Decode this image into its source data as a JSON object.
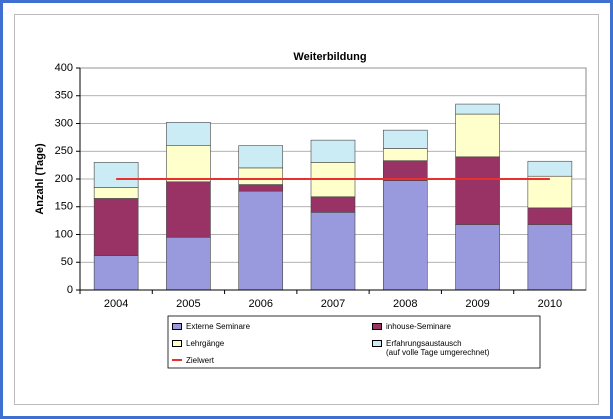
{
  "chart_data": {
    "type": "bar",
    "stacked": true,
    "title": "Weiterbildung",
    "y_label": "Anzahl (Tage)",
    "categories": [
      "2004",
      "2005",
      "2006",
      "2007",
      "2008",
      "2009",
      "2010"
    ],
    "series": [
      {
        "name": "Externe Seminare",
        "color": "#9999dd",
        "values": [
          62,
          95,
          178,
          140,
          197,
          118,
          118
        ]
      },
      {
        "name": "inhouse-Seminare",
        "color": "#993366",
        "values": [
          103,
          100,
          12,
          28,
          36,
          122,
          30
        ]
      },
      {
        "name": "Lehrgänge",
        "color": "#ffffcc",
        "values": [
          20,
          65,
          30,
          62,
          22,
          77,
          57
        ]
      },
      {
        "name": "Erfahrungsaustausch\n(auf volle Tage umgerechnet)",
        "color": "#ccecf5",
        "values": [
          45,
          42,
          40,
          40,
          33,
          18,
          27
        ]
      },
      {
        "name": "Zielwert",
        "color": "#e8312f",
        "type": "line",
        "values": [
          200,
          200,
          200,
          200,
          200,
          200,
          200
        ]
      }
    ],
    "ylim": [
      0,
      400
    ],
    "yticks": [
      0,
      50,
      100,
      150,
      200,
      250,
      300,
      350,
      400
    ],
    "grid": true
  }
}
